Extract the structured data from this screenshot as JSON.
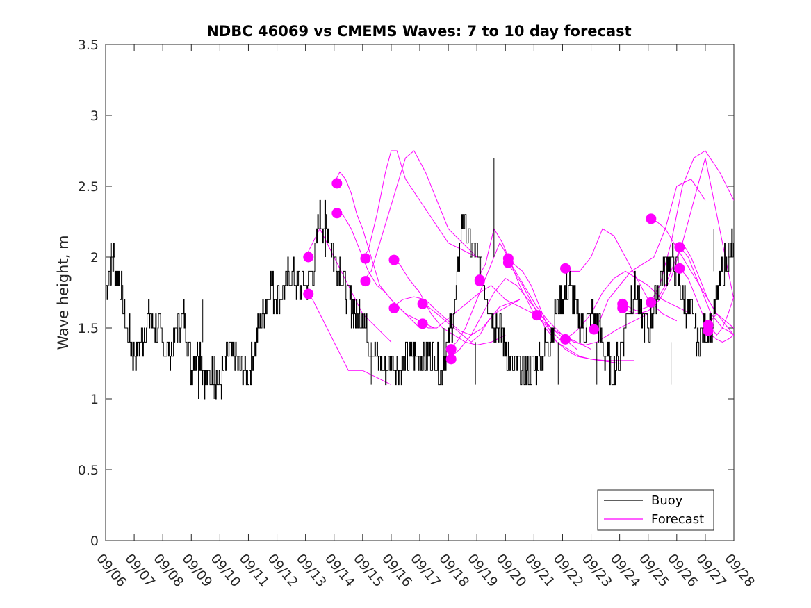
{
  "chart_data": {
    "type": "line",
    "title": "NDBC 46069 vs CMEMS Waves: 7 to 10 day forecast",
    "xlabel": "",
    "ylabel": "Wave height, m",
    "xlim": [
      0,
      22
    ],
    "ylim": [
      0,
      3.5
    ],
    "x_tick_labels": [
      "09/06",
      "09/07",
      "09/08",
      "09/09",
      "09/10",
      "09/11",
      "09/12",
      "09/13",
      "09/14",
      "09/15",
      "09/16",
      "09/17",
      "09/18",
      "09/19",
      "09/20",
      "09/21",
      "09/22",
      "09/23",
      "09/24",
      "09/25",
      "09/26",
      "09/27",
      "09/28"
    ],
    "y_ticks": [
      0,
      0.5,
      1,
      1.5,
      2,
      2.5,
      3,
      3.5
    ],
    "y_tick_labels": [
      "0",
      "0.5",
      "1",
      "1.5",
      "2",
      "2.5",
      "3",
      "3.5"
    ],
    "x_unit": "days since 09/06",
    "colors": {
      "buoy": "#000000",
      "forecast": "#ff00ff",
      "axis": "#262626"
    },
    "legend": {
      "position": "bottom-right",
      "entries": [
        {
          "name": "Buoy",
          "color": "#000000"
        },
        {
          "name": "Forecast",
          "color": "#ff00ff"
        }
      ]
    },
    "buoy": {
      "name": "Buoy",
      "x": [
        0,
        0.25,
        0.5,
        0.75,
        1,
        1.25,
        1.5,
        1.75,
        2,
        2.25,
        2.5,
        2.75,
        3,
        3.25,
        3.5,
        3.75,
        4,
        4.25,
        4.5,
        4.75,
        5,
        5.25,
        5.5,
        5.75,
        6,
        6.25,
        6.5,
        6.75,
        7,
        7.25,
        7.5,
        7.75,
        8,
        8.25,
        8.5,
        8.75,
        9,
        9.25,
        9.5,
        9.75,
        10,
        10.25,
        10.5,
        10.75,
        11,
        11.25,
        11.5,
        11.75,
        12,
        12.25,
        12.5,
        12.75,
        13,
        13.25,
        13.5,
        13.75,
        14,
        14.25,
        14.5,
        14.75,
        15,
        15.25,
        15.5,
        15.75,
        16,
        16.25,
        16.5,
        16.75,
        17,
        17.25,
        17.5,
        17.75,
        18,
        18.25,
        18.5,
        18.75,
        19,
        19.25,
        19.5,
        19.75,
        20,
        20.25,
        20.5,
        20.75,
        21,
        21.25,
        21.5,
        21.75,
        22
      ],
      "y": [
        1.8,
        2.0,
        1.8,
        1.5,
        1.3,
        1.4,
        1.6,
        1.5,
        1.4,
        1.3,
        1.5,
        1.6,
        1.2,
        1.4,
        1.1,
        1.2,
        1.1,
        1.3,
        1.3,
        1.2,
        1.2,
        1.4,
        1.6,
        1.8,
        1.7,
        1.8,
        1.9,
        1.8,
        1.8,
        1.9,
        2.3,
        2.2,
        2.0,
        1.9,
        1.7,
        1.6,
        1.6,
        1.4,
        1.3,
        1.2,
        1.3,
        1.2,
        1.3,
        1.3,
        1.3,
        1.3,
        1.3,
        1.2,
        1.4,
        1.7,
        2.3,
        2.1,
        2.0,
        1.8,
        1.6,
        1.5,
        1.4,
        1.2,
        1.2,
        1.2,
        1.2,
        1.3,
        1.4,
        1.6,
        1.7,
        1.8,
        1.6,
        1.5,
        1.6,
        1.5,
        1.3,
        1.2,
        1.3,
        1.6,
        1.8,
        1.6,
        1.5,
        1.7,
        1.9,
        2.0,
        1.9,
        1.7,
        1.6,
        1.4,
        1.5,
        1.5,
        1.8,
        2.0,
        2.1
      ]
    },
    "buoy_peaks": [
      {
        "x": 0.2,
        "y": 2.1
      },
      {
        "x": 3.25,
        "y": 1.0
      },
      {
        "x": 3.4,
        "y": 1.7
      },
      {
        "x": 3.8,
        "y": 1.0
      },
      {
        "x": 7.7,
        "y": 2.4
      },
      {
        "x": 9.3,
        "y": 1.1
      },
      {
        "x": 11.85,
        "y": 1.2
      },
      {
        "x": 12.95,
        "y": 1.1
      },
      {
        "x": 13.6,
        "y": 2.7
      },
      {
        "x": 15.85,
        "y": 1.1
      },
      {
        "x": 17.2,
        "y": 1.1
      },
      {
        "x": 19.8,
        "y": 1.1
      },
      {
        "x": 21.3,
        "y": 2.2
      }
    ],
    "forecast_series": [
      {
        "name": "Forecast",
        "x": [
          7,
          7.25,
          7.5,
          7.75,
          8,
          8.25,
          8.5,
          8.75,
          9,
          9.5,
          10
        ],
        "y": [
          1.75,
          1.7,
          1.6,
          1.5,
          1.4,
          1.3,
          1.2,
          1.2,
          1.2,
          1.15,
          1.1
        ]
      },
      {
        "name": "Forecast",
        "x": [
          7,
          7.25,
          7.5,
          7.75,
          8,
          8.25,
          8.5,
          8.75,
          9,
          9.5,
          10
        ],
        "y": [
          2.0,
          2.1,
          2.2,
          2.1,
          2.0,
          1.9,
          1.8,
          1.7,
          1.6,
          1.5,
          1.4
        ]
      },
      {
        "name": "Forecast",
        "x": [
          8,
          8.2,
          8.4,
          8.6,
          8.8,
          9,
          9.3,
          9.6,
          10,
          10.5,
          11
        ],
        "y": [
          2.52,
          2.6,
          2.55,
          2.45,
          2.3,
          2.2,
          2.0,
          1.8,
          1.7,
          1.6,
          1.5
        ]
      },
      {
        "name": "Forecast",
        "x": [
          8,
          8.3,
          8.6,
          8.9,
          9.2,
          9.5,
          9.8,
          10,
          10.5,
          11,
          11.5
        ],
        "y": [
          2.31,
          2.3,
          2.2,
          2.05,
          1.9,
          1.8,
          1.75,
          1.7,
          1.6,
          1.55,
          1.5
        ]
      },
      {
        "name": "Forecast",
        "x": [
          9,
          9.2,
          9.5,
          9.8,
          10,
          10.2,
          10.5,
          11,
          11.5,
          12,
          13
        ],
        "y": [
          1.99,
          2.05,
          2.3,
          2.6,
          2.75,
          2.75,
          2.55,
          2.4,
          2.25,
          2.1,
          2.0
        ]
      },
      {
        "name": "Forecast",
        "x": [
          9,
          9.3,
          9.6,
          9.9,
          10.2,
          10.5,
          10.8,
          11.2,
          11.6,
          12,
          13
        ],
        "y": [
          1.83,
          1.9,
          2.1,
          2.3,
          2.5,
          2.7,
          2.75,
          2.6,
          2.4,
          2.2,
          2.0
        ]
      },
      {
        "name": "Forecast",
        "x": [
          10,
          10.3,
          10.6,
          11,
          11.4,
          11.8,
          12.2,
          12.6,
          13,
          13.5,
          14
        ],
        "y": [
          1.98,
          1.95,
          1.85,
          1.75,
          1.6,
          1.5,
          1.45,
          1.4,
          1.38,
          1.4,
          1.45
        ]
      },
      {
        "name": "Forecast",
        "x": [
          10,
          10.4,
          10.8,
          11.2,
          11.6,
          12,
          12.4,
          12.8,
          13.2,
          13.6,
          14.5
        ],
        "y": [
          1.64,
          1.7,
          1.72,
          1.7,
          1.62,
          1.55,
          1.48,
          1.45,
          1.5,
          1.6,
          1.7
        ]
      },
      {
        "name": "Forecast",
        "x": [
          11,
          11.3,
          11.6,
          11.9,
          12.2,
          12.5,
          12.8,
          13.1,
          13.4,
          13.8,
          14.5
        ],
        "y": [
          1.67,
          1.65,
          1.6,
          1.55,
          1.5,
          1.45,
          1.4,
          1.45,
          1.55,
          1.65,
          1.7
        ]
      },
      {
        "name": "Forecast",
        "x": [
          11,
          11.3,
          11.6,
          11.9,
          12.2,
          12.5,
          12.8,
          13.1,
          13.5,
          14,
          15
        ],
        "y": [
          1.53,
          1.5,
          1.5,
          1.55,
          1.6,
          1.65,
          1.7,
          1.75,
          1.8,
          1.7,
          1.6
        ]
      },
      {
        "name": "Forecast",
        "x": [
          12,
          12.3,
          12.6,
          12.9,
          13.2,
          13.5,
          13.8,
          14.1,
          14.5,
          15,
          16
        ],
        "y": [
          1.35,
          1.4,
          1.5,
          1.65,
          1.8,
          1.95,
          2.1,
          2.0,
          1.8,
          1.6,
          1.4
        ]
      },
      {
        "name": "Forecast",
        "x": [
          12,
          12.4,
          12.8,
          13.2,
          13.6,
          14,
          14.4,
          14.8,
          15.2,
          15.6,
          16.5
        ],
        "y": [
          1.28,
          1.35,
          1.45,
          1.6,
          1.75,
          1.85,
          1.8,
          1.7,
          1.6,
          1.5,
          1.35
        ]
      },
      {
        "name": "Forecast",
        "x": [
          13,
          13.3,
          13.6,
          13.9,
          14.2,
          14.5,
          14.8,
          15.1,
          15.5,
          16,
          17
        ],
        "y": [
          1.84,
          1.95,
          2.2,
          2.1,
          1.95,
          1.85,
          1.75,
          1.65,
          1.55,
          1.45,
          1.35
        ]
      },
      {
        "name": "Forecast",
        "x": [
          14,
          14.3,
          14.6,
          14.9,
          15.2,
          15.5,
          15.8,
          16.1,
          16.5,
          17,
          18
        ],
        "y": [
          1.99,
          1.95,
          1.9,
          1.8,
          1.65,
          1.5,
          1.4,
          1.35,
          1.3,
          1.28,
          1.25
        ]
      },
      {
        "name": "Forecast",
        "x": [
          14,
          14.3,
          14.6,
          15,
          15.4,
          15.8,
          16.2,
          16.6,
          17,
          17.5,
          18.5
        ],
        "y": [
          1.96,
          1.9,
          1.8,
          1.65,
          1.5,
          1.4,
          1.35,
          1.3,
          1.28,
          1.27,
          1.27
        ]
      },
      {
        "name": "Forecast",
        "x": [
          15,
          15.3,
          15.6,
          16,
          16.4,
          16.8,
          17.2,
          17.6,
          18,
          18.5,
          19
        ],
        "y": [
          1.59,
          1.55,
          1.5,
          1.45,
          1.4,
          1.38,
          1.4,
          1.45,
          1.5,
          1.55,
          1.6
        ]
      },
      {
        "name": "Forecast",
        "x": [
          16,
          16.3,
          16.6,
          17,
          17.4,
          17.8,
          18.2,
          18.6,
          19,
          19.5,
          20
        ],
        "y": [
          1.92,
          1.9,
          1.9,
          2.0,
          2.2,
          2.15,
          2.0,
          1.85,
          1.7,
          1.6,
          1.55
        ]
      },
      {
        "name": "Forecast",
        "x": [
          16,
          16.3,
          16.6,
          17,
          17.4,
          17.8,
          18.2,
          18.6,
          19,
          19.5,
          20.5
        ],
        "y": [
          1.42,
          1.45,
          1.5,
          1.6,
          1.75,
          1.85,
          1.9,
          1.85,
          1.8,
          1.7,
          1.6
        ]
      },
      {
        "name": "Forecast",
        "x": [
          17,
          17.3,
          17.6,
          18,
          18.4,
          18.8,
          19.2,
          19.6,
          20,
          20.5,
          21
        ],
        "y": [
          1.49,
          1.55,
          1.7,
          1.8,
          1.9,
          1.95,
          2.0,
          2.2,
          2.5,
          2.55,
          2.4
        ]
      },
      {
        "name": "Forecast",
        "x": [
          18,
          18.3,
          18.6,
          19,
          19.4,
          19.8,
          20.2,
          20.6,
          21,
          21.5,
          22
        ],
        "y": [
          1.67,
          1.65,
          1.62,
          1.65,
          1.8,
          2.1,
          2.5,
          2.7,
          2.75,
          2.6,
          2.4
        ]
      },
      {
        "name": "Forecast",
        "x": [
          18,
          18.3,
          18.6,
          19,
          19.4,
          19.8,
          20.2,
          20.6,
          21,
          21.5,
          22
        ],
        "y": [
          1.64,
          1.62,
          1.6,
          1.62,
          1.7,
          1.85,
          2.1,
          2.4,
          2.7,
          2.2,
          1.7
        ]
      },
      {
        "name": "Forecast",
        "x": [
          19,
          19.3,
          19.6,
          19.9,
          20.2,
          20.5,
          20.8,
          21.1,
          21.4,
          21.7,
          22
        ],
        "y": [
          2.27,
          2.25,
          2.2,
          2.1,
          2.0,
          1.9,
          1.8,
          1.7,
          1.6,
          1.55,
          1.5
        ]
      },
      {
        "name": "Forecast",
        "x": [
          19,
          19.3,
          19.6,
          19.9,
          20.2,
          20.5,
          20.8,
          21.1,
          21.4,
          21.7,
          22
        ],
        "y": [
          1.68,
          1.7,
          1.8,
          1.95,
          2.1,
          2.0,
          1.85,
          1.7,
          1.6,
          1.55,
          1.5
        ]
      },
      {
        "name": "Forecast",
        "x": [
          20,
          20.2,
          20.4,
          20.6,
          20.8,
          21,
          21.2,
          21.4,
          21.6,
          21.8,
          22
        ],
        "y": [
          2.07,
          2.05,
          2.0,
          1.9,
          1.8,
          1.7,
          1.6,
          1.55,
          1.5,
          1.48,
          1.45
        ]
      },
      {
        "name": "Forecast",
        "x": [
          20,
          20.2,
          20.4,
          20.6,
          20.8,
          21,
          21.2,
          21.4,
          21.6,
          21.8,
          22
        ],
        "y": [
          1.92,
          1.9,
          1.85,
          1.75,
          1.65,
          1.55,
          1.5,
          1.45,
          1.5,
          1.6,
          1.72
        ]
      },
      {
        "name": "Forecast",
        "x": [
          21,
          21.2,
          21.4,
          21.6,
          21.8,
          22
        ],
        "y": [
          1.52,
          1.55,
          1.6,
          1.55,
          1.5,
          1.45
        ]
      },
      {
        "name": "Forecast",
        "x": [
          21,
          21.2,
          21.4,
          21.6,
          21.8,
          22
        ],
        "y": [
          1.48,
          1.45,
          1.42,
          1.4,
          1.42,
          1.45
        ]
      }
    ],
    "forecast_points": [
      {
        "x": 7.1,
        "y": 2.0
      },
      {
        "x": 7.1,
        "y": 1.74
      },
      {
        "x": 8.1,
        "y": 2.52
      },
      {
        "x": 8.1,
        "y": 2.31
      },
      {
        "x": 9.1,
        "y": 1.99
      },
      {
        "x": 9.1,
        "y": 1.83
      },
      {
        "x": 10.1,
        "y": 1.98
      },
      {
        "x": 10.1,
        "y": 1.64
      },
      {
        "x": 11.1,
        "y": 1.67
      },
      {
        "x": 11.1,
        "y": 1.53
      },
      {
        "x": 12.1,
        "y": 1.35
      },
      {
        "x": 12.1,
        "y": 1.28
      },
      {
        "x": 13.1,
        "y": 1.84
      },
      {
        "x": 13.1,
        "y": 1.83
      },
      {
        "x": 14.1,
        "y": 1.99
      },
      {
        "x": 14.1,
        "y": 1.96
      },
      {
        "x": 15.1,
        "y": 1.59
      },
      {
        "x": 16.1,
        "y": 1.92
      },
      {
        "x": 16.1,
        "y": 1.42
      },
      {
        "x": 17.1,
        "y": 1.49
      },
      {
        "x": 18.1,
        "y": 1.67
      },
      {
        "x": 18.1,
        "y": 1.64
      },
      {
        "x": 19.1,
        "y": 2.27
      },
      {
        "x": 19.1,
        "y": 1.68
      },
      {
        "x": 20.1,
        "y": 2.07
      },
      {
        "x": 20.1,
        "y": 1.92
      },
      {
        "x": 21.1,
        "y": 1.52
      },
      {
        "x": 21.1,
        "y": 1.48
      }
    ]
  }
}
